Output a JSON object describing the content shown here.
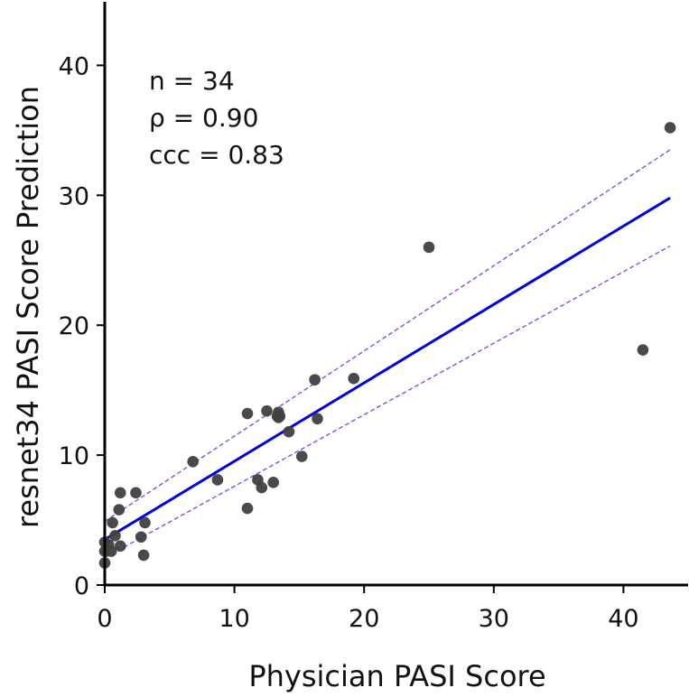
{
  "chart_data": {
    "type": "scatter",
    "title": "",
    "xlabel": "Physician PASI Score",
    "ylabel": "resnet34 PASI Score Prediction",
    "xlim": [
      0,
      45
    ],
    "ylim": [
      0,
      45
    ],
    "xticks": [
      0,
      10,
      20,
      30,
      40
    ],
    "yticks": [
      0,
      10,
      20,
      30,
      40
    ],
    "grid": false,
    "annotations": [
      "n = 34",
      "ρ = 0.90",
      "ccc = 0.83"
    ],
    "points": [
      {
        "x": 0.0,
        "y": 1.7
      },
      {
        "x": 0.0,
        "y": 2.6
      },
      {
        "x": 0.0,
        "y": 3.3
      },
      {
        "x": 0.5,
        "y": 2.6
      },
      {
        "x": 0.6,
        "y": 4.8
      },
      {
        "x": 0.8,
        "y": 3.8
      },
      {
        "x": 1.1,
        "y": 5.8
      },
      {
        "x": 1.2,
        "y": 3.0
      },
      {
        "x": 1.2,
        "y": 7.1
      },
      {
        "x": 2.4,
        "y": 7.1
      },
      {
        "x": 2.8,
        "y": 3.7
      },
      {
        "x": 3.0,
        "y": 2.3
      },
      {
        "x": 3.1,
        "y": 4.8
      },
      {
        "x": 6.8,
        "y": 9.5
      },
      {
        "x": 8.7,
        "y": 8.1
      },
      {
        "x": 11.0,
        "y": 5.9
      },
      {
        "x": 11.0,
        "y": 13.2
      },
      {
        "x": 11.8,
        "y": 8.1
      },
      {
        "x": 12.1,
        "y": 7.5
      },
      {
        "x": 12.5,
        "y": 13.4
      },
      {
        "x": 13.0,
        "y": 7.9
      },
      {
        "x": 13.3,
        "y": 13.0
      },
      {
        "x": 13.4,
        "y": 13.3
      },
      {
        "x": 13.5,
        "y": 13.0
      },
      {
        "x": 14.2,
        "y": 11.8
      },
      {
        "x": 15.2,
        "y": 9.9
      },
      {
        "x": 16.2,
        "y": 15.8
      },
      {
        "x": 16.4,
        "y": 12.8
      },
      {
        "x": 19.2,
        "y": 15.9
      },
      {
        "x": 25.0,
        "y": 26.0
      },
      {
        "x": 41.5,
        "y": 18.1
      },
      {
        "x": 43.6,
        "y": 35.2
      },
      {
        "x": 13.4,
        "y": 12.9
      },
      {
        "x": 0.3,
        "y": 3.1
      }
    ],
    "fit_line": {
      "x": [
        0,
        43.6
      ],
      "y": [
        3.5,
        29.8
      ],
      "color": "#0000dd"
    },
    "ci_upper": {
      "x": [
        0,
        43.6
      ],
      "y": [
        4.9,
        33.5
      ],
      "color": "#5555ee"
    },
    "ci_lower": {
      "x": [
        0,
        43.6
      ],
      "y": [
        2.1,
        26.1
      ],
      "color": "#5555ee"
    },
    "point_color": "#404040"
  }
}
